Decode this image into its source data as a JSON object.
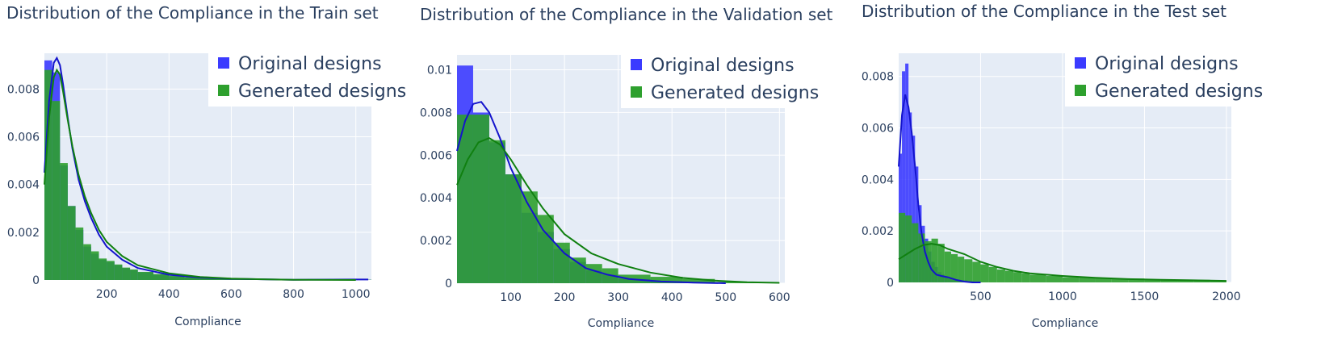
{
  "colors": {
    "original": "#3b3bff",
    "generated": "#2ea02e",
    "original_kde": "#1414cc",
    "generated_kde": "#108010",
    "plot_bg": "#e5ecf6",
    "text": "#2a3f5f"
  },
  "legend": {
    "original": "Original designs",
    "generated": "Generated designs"
  },
  "chart_data": [
    {
      "type": "histogram",
      "title": "Distribution of the Compliance in the Train set",
      "xlabel": "Compliance",
      "ylabel": "",
      "xlim": [
        0,
        1050
      ],
      "ylim": [
        0,
        0.0095
      ],
      "xticks": [
        200,
        400,
        600,
        800,
        1000
      ],
      "yticks": [
        0,
        0.002,
        0.004,
        0.006,
        0.008
      ],
      "ytick_labels": [
        "0",
        "0.002",
        "0.004",
        "0.006",
        "0.008"
      ],
      "legend_position": "top-right",
      "bin_width": 25,
      "series": [
        {
          "name": "Original designs",
          "bin_starts": [
            0,
            25,
            50,
            75,
            100,
            125,
            150,
            175,
            200,
            225,
            250,
            275,
            300,
            350,
            400,
            450,
            500,
            600,
            700,
            800
          ],
          "bin_widths": [
            25,
            25,
            25,
            25,
            25,
            25,
            25,
            25,
            25,
            25,
            25,
            25,
            50,
            50,
            50,
            50,
            100,
            100,
            100,
            250
          ],
          "values": [
            0.0092,
            0.0087,
            0.0048,
            0.0031,
            0.0021,
            0.0014,
            0.0011,
            0.00085,
            0.00075,
            0.00062,
            0.0005,
            0.00042,
            0.00032,
            0.00022,
            0.00015,
            0.0001,
            7e-05,
            4e-05,
            2e-05,
            1e-05
          ]
        },
        {
          "name": "Generated designs",
          "bin_starts": [
            0,
            25,
            50,
            75,
            100,
            125,
            150,
            175,
            200,
            225,
            250,
            275,
            300,
            350,
            400,
            450,
            500,
            600,
            700,
            800
          ],
          "bin_widths": [
            25,
            25,
            25,
            25,
            25,
            25,
            25,
            25,
            25,
            25,
            25,
            25,
            50,
            50,
            50,
            50,
            100,
            100,
            100,
            250
          ],
          "values": [
            0.0088,
            0.0075,
            0.0049,
            0.0031,
            0.0022,
            0.0015,
            0.0012,
            0.0009,
            0.0008,
            0.00065,
            0.00052,
            0.00044,
            0.00034,
            0.00025,
            0.00018,
            0.00012,
            8e-05,
            5e-05,
            2e-05,
            1e-05
          ]
        }
      ],
      "kde": [
        {
          "name": "Original designs",
          "x": [
            0,
            15,
            30,
            40,
            50,
            60,
            75,
            90,
            110,
            130,
            150,
            175,
            200,
            250,
            300,
            400,
            500,
            600,
            800,
            1000,
            1040
          ],
          "y": [
            0.0045,
            0.0075,
            0.0091,
            0.0093,
            0.009,
            0.0082,
            0.0068,
            0.0055,
            0.0042,
            0.0033,
            0.0026,
            0.0019,
            0.0014,
            0.00085,
            0.0005,
            0.00022,
            0.0001,
            5e-05,
            1e-05,
            2e-05,
            2e-05
          ]
        },
        {
          "name": "Generated designs",
          "x": [
            0,
            15,
            30,
            40,
            50,
            60,
            75,
            90,
            110,
            130,
            150,
            175,
            200,
            250,
            300,
            400,
            500,
            600,
            700,
            800,
            1000
          ],
          "y": [
            0.004,
            0.0068,
            0.0085,
            0.0088,
            0.0086,
            0.0079,
            0.0067,
            0.0056,
            0.0044,
            0.0035,
            0.0028,
            0.0021,
            0.0016,
            0.001,
            0.00062,
            0.00028,
            0.00013,
            6e-05,
            3e-05,
            1e-05,
            0.0
          ]
        }
      ]
    },
    {
      "type": "histogram",
      "title": "Distribution of the Compliance in the Validation set",
      "xlabel": "Compliance",
      "ylabel": "",
      "xlim": [
        0,
        610
      ],
      "ylim": [
        0,
        0.0107
      ],
      "xticks": [
        100,
        200,
        300,
        400,
        500,
        600
      ],
      "yticks": [
        0,
        0.002,
        0.004,
        0.006,
        0.008,
        0.01
      ],
      "ytick_labels": [
        "0",
        "0.002",
        "0.004",
        "0.006",
        "0.008",
        "0.01"
      ],
      "legend_position": "top-right",
      "series": [
        {
          "name": "Original designs",
          "bin_starts": [
            0,
            30,
            60,
            90,
            120,
            150,
            180,
            210,
            240,
            270,
            300,
            360,
            420
          ],
          "bin_widths": [
            30,
            30,
            30,
            30,
            30,
            30,
            30,
            30,
            30,
            30,
            60,
            60,
            60
          ],
          "values": [
            0.0102,
            0.008,
            0.0066,
            0.0051,
            0.0033,
            0.0024,
            0.0016,
            0.001,
            0.0006,
            0.0004,
            0.0002,
            0.0001,
            3e-05
          ]
        },
        {
          "name": "Generated designs",
          "bin_starts": [
            0,
            30,
            60,
            90,
            120,
            150,
            180,
            210,
            240,
            270,
            300,
            360,
            420,
            480,
            540
          ],
          "bin_widths": [
            30,
            30,
            30,
            30,
            30,
            30,
            30,
            30,
            30,
            30,
            60,
            60,
            60,
            60,
            60
          ],
          "values": [
            0.0079,
            0.0079,
            0.0067,
            0.0051,
            0.0043,
            0.0032,
            0.0019,
            0.0012,
            0.0009,
            0.0007,
            0.0004,
            0.0003,
            0.0002,
            6e-05,
            3e-05
          ]
        }
      ],
      "kde": [
        {
          "name": "Original designs",
          "x": [
            0,
            15,
            30,
            45,
            60,
            80,
            100,
            130,
            160,
            200,
            240,
            280,
            320,
            380,
            440,
            500
          ],
          "y": [
            0.0062,
            0.0076,
            0.0084,
            0.0085,
            0.008,
            0.0068,
            0.0054,
            0.0038,
            0.0025,
            0.0014,
            0.0007,
            0.0004,
            0.0002,
            8e-05,
            3e-05,
            0.0
          ]
        },
        {
          "name": "Generated designs",
          "x": [
            0,
            20,
            40,
            60,
            80,
            100,
            130,
            160,
            200,
            250,
            300,
            360,
            420,
            480,
            540,
            600
          ],
          "y": [
            0.0046,
            0.0058,
            0.0066,
            0.0068,
            0.0065,
            0.0058,
            0.0046,
            0.0035,
            0.0023,
            0.0014,
            0.0009,
            0.0005,
            0.00025,
            0.00012,
            5e-05,
            2e-05
          ]
        }
      ]
    },
    {
      "type": "histogram",
      "title": "Distribution of the Compliance in the Test set",
      "xlabel": "Compliance",
      "ylabel": "",
      "xlim": [
        0,
        2030
      ],
      "ylim": [
        0,
        0.0089
      ],
      "xticks": [
        500,
        1000,
        1500,
        2000
      ],
      "yticks": [
        0,
        0.002,
        0.004,
        0.006,
        0.008
      ],
      "ytick_labels": [
        "0",
        "0.002",
        "0.004",
        "0.006",
        "0.008"
      ],
      "legend_position": "top-right",
      "series": [
        {
          "name": "Original designs",
          "bin_starts": [
            0,
            20,
            40,
            60,
            80,
            100,
            120,
            140,
            160,
            180,
            200,
            220,
            240,
            260,
            280,
            300,
            340,
            380,
            420,
            460
          ],
          "bin_widths": [
            20,
            20,
            20,
            20,
            20,
            20,
            20,
            20,
            20,
            20,
            20,
            20,
            20,
            20,
            20,
            40,
            40,
            40,
            40,
            40
          ],
          "values": [
            0.005,
            0.0082,
            0.0085,
            0.0066,
            0.0057,
            0.0045,
            0.003,
            0.0022,
            0.0017,
            0.0012,
            0.0008,
            0.0006,
            0.0004,
            0.0003,
            0.0002,
            0.00015,
            0.0001,
            8e-05,
            5e-05,
            3e-05
          ]
        },
        {
          "name": "Generated designs",
          "bin_starts": [
            0,
            40,
            80,
            120,
            160,
            200,
            240,
            280,
            320,
            360,
            400,
            450,
            500,
            550,
            600,
            650,
            700,
            750,
            800,
            900,
            1000,
            1100,
            1200,
            1300,
            1400,
            1500,
            1600,
            1700,
            1800,
            1900
          ],
          "bin_widths": [
            40,
            40,
            40,
            40,
            40,
            40,
            40,
            40,
            40,
            40,
            50,
            50,
            50,
            50,
            50,
            50,
            50,
            50,
            100,
            100,
            100,
            100,
            100,
            100,
            100,
            100,
            100,
            100,
            100,
            100
          ],
          "values": [
            0.0027,
            0.0026,
            0.0023,
            0.0019,
            0.0016,
            0.0017,
            0.0015,
            0.0012,
            0.0011,
            0.001,
            0.0009,
            0.0008,
            0.0007,
            0.0006,
            0.0005,
            0.00045,
            0.0004,
            0.00035,
            0.0003,
            0.00025,
            0.0002,
            0.0002,
            0.00018,
            0.00015,
            0.00015,
            0.00012,
            0.0001,
            0.0001,
            0.0001,
            8e-05
          ]
        }
      ],
      "kde": [
        {
          "name": "Original designs",
          "x": [
            0,
            20,
            40,
            60,
            80,
            100,
            120,
            140,
            160,
            180,
            200,
            230,
            260,
            300,
            350,
            400,
            450,
            500
          ],
          "y": [
            0.0045,
            0.0065,
            0.0073,
            0.0068,
            0.0058,
            0.0045,
            0.003,
            0.0019,
            0.0012,
            0.0008,
            0.0005,
            0.0003,
            0.00025,
            0.0002,
            0.0001,
            3e-05,
            0.0,
            0.0
          ]
        },
        {
          "name": "Generated designs",
          "x": [
            0,
            50,
            100,
            150,
            200,
            250,
            300,
            400,
            500,
            600,
            700,
            800,
            1000,
            1200,
            1400,
            1600,
            1800,
            2000
          ],
          "y": [
            0.0009,
            0.0011,
            0.0013,
            0.00145,
            0.0015,
            0.00145,
            0.0013,
            0.0011,
            0.0008,
            0.0006,
            0.00045,
            0.00035,
            0.00025,
            0.00018,
            0.00013,
            0.0001,
            8e-05,
            6e-05
          ]
        }
      ]
    }
  ]
}
